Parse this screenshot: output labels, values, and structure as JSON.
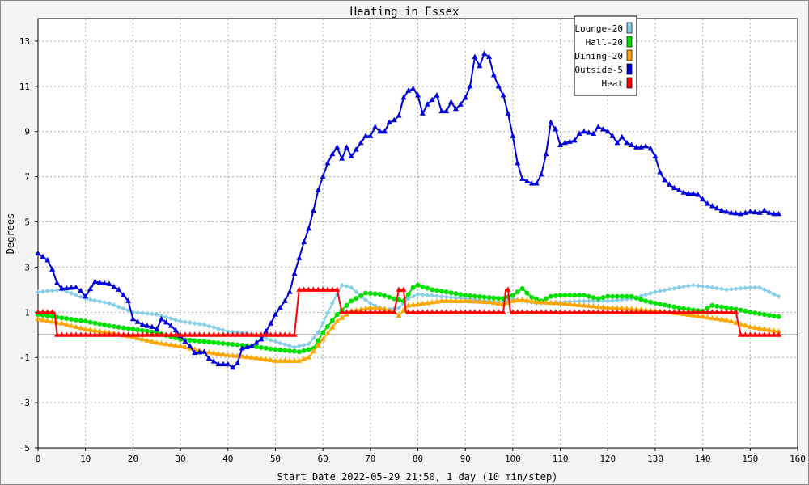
{
  "chart_data": {
    "type": "line",
    "title": "Heating in Essex",
    "xlabel": "Start Date 2022-05-29 21:50, 1 day (10 min/step)",
    "ylabel": "Degrees",
    "xlim": [
      0,
      160
    ],
    "ylim": [
      -5,
      14
    ],
    "x_ticks": [
      "0",
      "10",
      "20",
      "30",
      "40",
      "50",
      "60",
      "70",
      "80",
      "90",
      "100",
      "110",
      "120",
      "130",
      "140",
      "150",
      "160"
    ],
    "y_ticks": [
      "-5",
      "-3",
      "-1",
      "1",
      "3",
      "5",
      "7",
      "9",
      "11",
      "13"
    ],
    "grid": true,
    "legend_position": "top-right",
    "series": [
      {
        "name": "Lounge-20",
        "color": "#87ceeb",
        "marker": "diamond",
        "points": [
          [
            0,
            1.9
          ],
          [
            5,
            2.0
          ],
          [
            10,
            1.6
          ],
          [
            15,
            1.4
          ],
          [
            20,
            1.0
          ],
          [
            25,
            0.9
          ],
          [
            30,
            0.6
          ],
          [
            35,
            0.45
          ],
          [
            40,
            0.15
          ],
          [
            45,
            0.05
          ],
          [
            50,
            -0.3
          ],
          [
            54,
            -0.55
          ],
          [
            57,
            -0.4
          ],
          [
            59,
            0.1
          ],
          [
            62,
            1.4
          ],
          [
            64,
            2.2
          ],
          [
            66,
            2.1
          ],
          [
            68,
            1.7
          ],
          [
            70,
            1.4
          ],
          [
            73,
            1.1
          ],
          [
            76,
            1.2
          ],
          [
            78,
            1.6
          ],
          [
            80,
            1.8
          ],
          [
            85,
            1.7
          ],
          [
            90,
            1.6
          ],
          [
            95,
            1.5
          ],
          [
            98,
            1.45
          ],
          [
            100,
            1.6
          ],
          [
            102,
            1.5
          ],
          [
            105,
            1.4
          ],
          [
            110,
            1.45
          ],
          [
            115,
            1.5
          ],
          [
            120,
            1.5
          ],
          [
            125,
            1.6
          ],
          [
            130,
            1.9
          ],
          [
            135,
            2.1
          ],
          [
            138,
            2.2
          ],
          [
            142,
            2.1
          ],
          [
            145,
            2.0
          ],
          [
            150,
            2.1
          ],
          [
            152,
            2.1
          ],
          [
            154,
            1.9
          ],
          [
            156,
            1.7
          ]
        ]
      },
      {
        "name": "Hall-20",
        "color": "#00e000",
        "marker": "circle",
        "points": [
          [
            0,
            0.9
          ],
          [
            5,
            0.75
          ],
          [
            10,
            0.6
          ],
          [
            15,
            0.4
          ],
          [
            20,
            0.25
          ],
          [
            25,
            0.1
          ],
          [
            30,
            -0.2
          ],
          [
            35,
            -0.3
          ],
          [
            40,
            -0.4
          ],
          [
            45,
            -0.5
          ],
          [
            50,
            -0.65
          ],
          [
            55,
            -0.75
          ],
          [
            58,
            -0.6
          ],
          [
            60,
            0.1
          ],
          [
            63,
            0.9
          ],
          [
            66,
            1.5
          ],
          [
            69,
            1.85
          ],
          [
            72,
            1.8
          ],
          [
            75,
            1.6
          ],
          [
            77,
            1.5
          ],
          [
            79,
            2.1
          ],
          [
            80,
            2.2
          ],
          [
            83,
            2.0
          ],
          [
            86,
            1.9
          ],
          [
            90,
            1.75
          ],
          [
            95,
            1.65
          ],
          [
            98,
            1.6
          ],
          [
            100,
            1.75
          ],
          [
            102,
            2.05
          ],
          [
            104,
            1.65
          ],
          [
            106,
            1.5
          ],
          [
            108,
            1.7
          ],
          [
            110,
            1.75
          ],
          [
            115,
            1.75
          ],
          [
            118,
            1.6
          ],
          [
            120,
            1.7
          ],
          [
            125,
            1.7
          ],
          [
            128,
            1.5
          ],
          [
            130,
            1.4
          ],
          [
            135,
            1.2
          ],
          [
            138,
            1.1
          ],
          [
            140,
            1.05
          ],
          [
            142,
            1.3
          ],
          [
            145,
            1.2
          ],
          [
            148,
            1.1
          ],
          [
            150,
            1.0
          ],
          [
            153,
            0.9
          ],
          [
            156,
            0.8
          ]
        ]
      },
      {
        "name": "Dining-20",
        "color": "#ffa500",
        "marker": "triangle",
        "points": [
          [
            0,
            0.7
          ],
          [
            5,
            0.5
          ],
          [
            10,
            0.25
          ],
          [
            15,
            0.1
          ],
          [
            20,
            -0.1
          ],
          [
            25,
            -0.35
          ],
          [
            30,
            -0.5
          ],
          [
            35,
            -0.75
          ],
          [
            40,
            -0.9
          ],
          [
            45,
            -1.0
          ],
          [
            50,
            -1.15
          ],
          [
            55,
            -1.15
          ],
          [
            57,
            -1.0
          ],
          [
            60,
            -0.2
          ],
          [
            63,
            0.6
          ],
          [
            66,
            1.05
          ],
          [
            70,
            1.2
          ],
          [
            73,
            1.15
          ],
          [
            75,
            1.0
          ],
          [
            76,
            0.85
          ],
          [
            78,
            1.3
          ],
          [
            80,
            1.35
          ],
          [
            85,
            1.5
          ],
          [
            90,
            1.5
          ],
          [
            95,
            1.45
          ],
          [
            98,
            1.35
          ],
          [
            100,
            1.5
          ],
          [
            102,
            1.55
          ],
          [
            105,
            1.45
          ],
          [
            110,
            1.4
          ],
          [
            115,
            1.3
          ],
          [
            120,
            1.2
          ],
          [
            125,
            1.15
          ],
          [
            130,
            1.05
          ],
          [
            135,
            0.95
          ],
          [
            140,
            0.8
          ],
          [
            145,
            0.65
          ],
          [
            150,
            0.35
          ],
          [
            153,
            0.25
          ],
          [
            156,
            0.15
          ]
        ]
      },
      {
        "name": "Outside-5",
        "color": "#0000dd",
        "marker": "triangle",
        "points": [
          [
            0,
            3.6
          ],
          [
            2,
            3.3
          ],
          [
            3,
            2.9
          ],
          [
            4,
            2.3
          ],
          [
            5,
            2.05
          ],
          [
            8,
            2.1
          ],
          [
            9,
            1.95
          ],
          [
            10,
            1.7
          ],
          [
            12,
            2.35
          ],
          [
            15,
            2.25
          ],
          [
            17,
            2.0
          ],
          [
            19,
            1.5
          ],
          [
            20,
            0.7
          ],
          [
            22,
            0.45
          ],
          [
            24,
            0.35
          ],
          [
            25,
            0.25
          ],
          [
            26,
            0.7
          ],
          [
            28,
            0.4
          ],
          [
            29,
            0.2
          ],
          [
            31,
            -0.3
          ],
          [
            32,
            -0.5
          ],
          [
            33,
            -0.8
          ],
          [
            35,
            -0.75
          ],
          [
            36,
            -1.05
          ],
          [
            38,
            -1.3
          ],
          [
            40,
            -1.3
          ],
          [
            41,
            -1.45
          ],
          [
            42,
            -1.25
          ],
          [
            43,
            -0.6
          ],
          [
            45,
            -0.5
          ],
          [
            47,
            -0.2
          ],
          [
            49,
            0.5
          ],
          [
            50,
            0.9
          ],
          [
            51,
            1.2
          ],
          [
            52,
            1.5
          ],
          [
            53,
            1.9
          ],
          [
            54,
            2.7
          ],
          [
            55,
            3.4
          ],
          [
            56,
            4.1
          ],
          [
            57,
            4.7
          ],
          [
            58,
            5.5
          ],
          [
            59,
            6.4
          ],
          [
            60,
            7.0
          ],
          [
            61,
            7.6
          ],
          [
            62,
            8.0
          ],
          [
            63,
            8.3
          ],
          [
            64,
            7.8
          ],
          [
            65,
            8.3
          ],
          [
            66,
            7.9
          ],
          [
            67,
            8.2
          ],
          [
            68,
            8.5
          ],
          [
            69,
            8.8
          ],
          [
            70,
            8.8
          ],
          [
            71,
            9.2
          ],
          [
            72,
            9.0
          ],
          [
            73,
            9.0
          ],
          [
            74,
            9.4
          ],
          [
            75,
            9.5
          ],
          [
            76,
            9.7
          ],
          [
            77,
            10.5
          ],
          [
            78,
            10.8
          ],
          [
            79,
            10.9
          ],
          [
            80,
            10.6
          ],
          [
            81,
            9.8
          ],
          [
            82,
            10.2
          ],
          [
            83,
            10.4
          ],
          [
            84,
            10.6
          ],
          [
            85,
            9.9
          ],
          [
            86,
            9.9
          ],
          [
            87,
            10.3
          ],
          [
            88,
            10.0
          ],
          [
            89,
            10.2
          ],
          [
            90,
            10.5
          ],
          [
            91,
            11.0
          ],
          [
            92,
            12.3
          ],
          [
            93,
            11.9
          ],
          [
            94,
            12.45
          ],
          [
            95,
            12.3
          ],
          [
            96,
            11.5
          ],
          [
            97,
            11.0
          ],
          [
            98,
            10.6
          ],
          [
            99,
            9.8
          ],
          [
            100,
            8.8
          ],
          [
            101,
            7.6
          ],
          [
            102,
            6.9
          ],
          [
            103,
            6.8
          ],
          [
            104,
            6.7
          ],
          [
            105,
            6.7
          ],
          [
            106,
            7.1
          ],
          [
            107,
            8.0
          ],
          [
            108,
            9.4
          ],
          [
            109,
            9.1
          ],
          [
            110,
            8.4
          ],
          [
            111,
            8.5
          ],
          [
            112,
            8.55
          ],
          [
            113,
            8.6
          ],
          [
            114,
            8.9
          ],
          [
            115,
            9.0
          ],
          [
            116,
            8.95
          ],
          [
            117,
            8.9
          ],
          [
            118,
            9.2
          ],
          [
            119,
            9.1
          ],
          [
            120,
            9.0
          ],
          [
            121,
            8.8
          ],
          [
            122,
            8.5
          ],
          [
            123,
            8.75
          ],
          [
            124,
            8.5
          ],
          [
            125,
            8.4
          ],
          [
            126,
            8.3
          ],
          [
            127,
            8.3
          ],
          [
            128,
            8.35
          ],
          [
            129,
            8.25
          ],
          [
            130,
            7.9
          ],
          [
            131,
            7.2
          ],
          [
            132,
            6.85
          ],
          [
            133,
            6.65
          ],
          [
            134,
            6.5
          ],
          [
            135,
            6.4
          ],
          [
            136,
            6.3
          ],
          [
            137,
            6.25
          ],
          [
            138,
            6.25
          ],
          [
            139,
            6.2
          ],
          [
            140,
            6.0
          ],
          [
            141,
            5.8
          ],
          [
            142,
            5.7
          ],
          [
            143,
            5.6
          ],
          [
            144,
            5.5
          ],
          [
            145,
            5.45
          ],
          [
            146,
            5.4
          ],
          [
            148,
            5.35
          ],
          [
            150,
            5.45
          ],
          [
            152,
            5.4
          ],
          [
            153,
            5.5
          ],
          [
            154,
            5.4
          ],
          [
            155,
            5.35
          ],
          [
            156,
            5.35
          ]
        ]
      },
      {
        "name": "Heat",
        "color": "#ff0000",
        "marker": "triangle",
        "points": [
          [
            0,
            1
          ],
          [
            3.5,
            1
          ],
          [
            4,
            0
          ],
          [
            54,
            0
          ],
          [
            55,
            2
          ],
          [
            63,
            2
          ],
          [
            64,
            1
          ],
          [
            75,
            1
          ],
          [
            76,
            2
          ],
          [
            77,
            2
          ],
          [
            77.5,
            1
          ],
          [
            98,
            1
          ],
          [
            98.5,
            2
          ],
          [
            99,
            2
          ],
          [
            99.5,
            1
          ],
          [
            147,
            1
          ],
          [
            148,
            0
          ],
          [
            156,
            0
          ]
        ]
      }
    ]
  }
}
